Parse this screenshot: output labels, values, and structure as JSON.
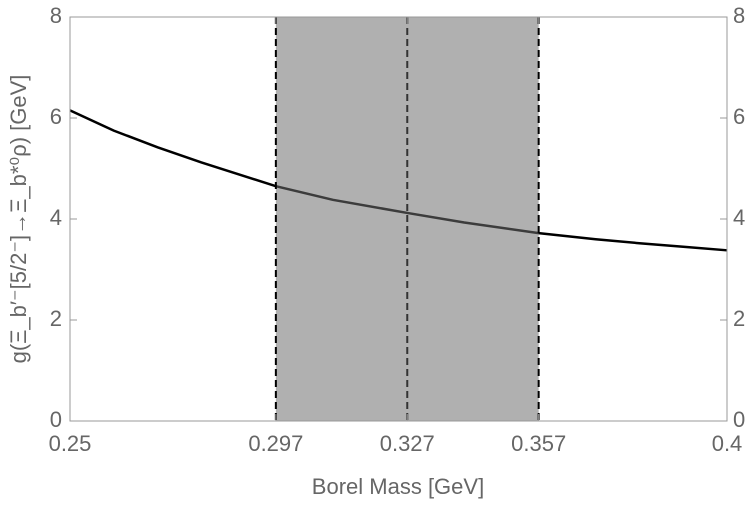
{
  "chart_data": {
    "type": "line",
    "xlabel": "Borel Mass [GeV]",
    "ylabel": "g(Ξ_b′⁻[5/2⁻]→Ξ_b*⁰ρ) [GeV]",
    "xlim": [
      0.25,
      0.4
    ],
    "xticks": [
      0.25,
      0.297,
      0.327,
      0.357,
      0.4
    ],
    "ylim": [
      0,
      8
    ],
    "yticks": [
      0,
      2,
      4,
      6,
      8
    ],
    "y2lim": [
      0,
      8
    ],
    "y2ticks": [
      0,
      2,
      4,
      6,
      8
    ],
    "shaded_region": [
      0.297,
      0.357
    ],
    "shade_color": "#6e6e6e",
    "vlines": [
      0.297,
      0.327,
      0.357
    ],
    "series": [
      {
        "color": "#000000",
        "x": [
          0.25,
          0.26,
          0.27,
          0.28,
          0.297,
          0.31,
          0.327,
          0.34,
          0.357,
          0.37,
          0.38,
          0.39,
          0.4
        ],
        "values": [
          6.15,
          5.75,
          5.42,
          5.12,
          4.65,
          4.38,
          4.12,
          3.93,
          3.72,
          3.6,
          3.52,
          3.45,
          3.38
        ]
      }
    ]
  }
}
